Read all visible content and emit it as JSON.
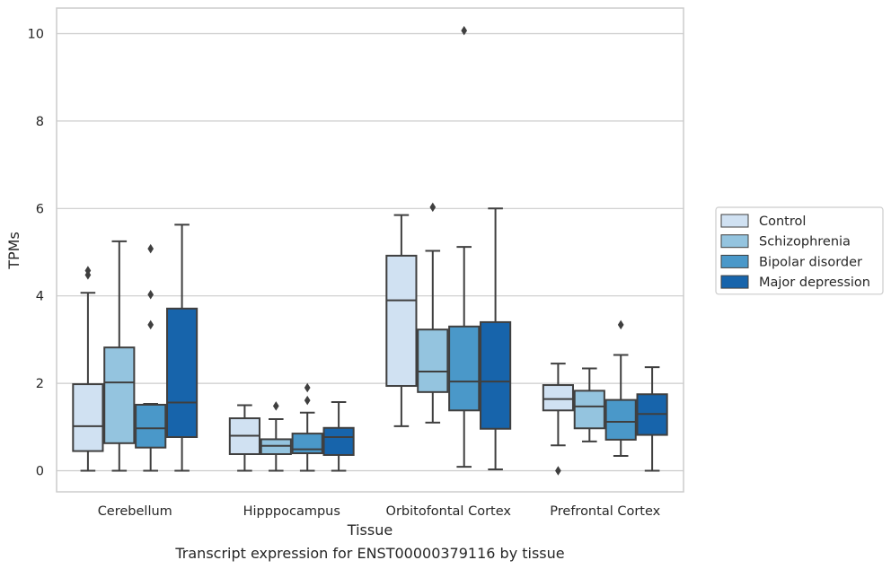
{
  "chart_data": {
    "type": "box",
    "xlabel": "Tissue",
    "ylabel": "TPMs",
    "caption": "Transcript expression for ENST00000379116 by tissue",
    "ylim": [
      -0.5,
      10.6
    ],
    "yticks": [
      0,
      2,
      4,
      6,
      8,
      10
    ],
    "grid": "horizontal",
    "legend_position": "right-outside",
    "categories": [
      "Cerebellum",
      "Hipppocampus",
      "Orbitofontal Cortex",
      "Prefrontal Cortex"
    ],
    "series": [
      {
        "name": "Control",
        "color": "#d0e1f2",
        "boxes": [
          {
            "whisker_low": 0.0,
            "q1": 0.45,
            "median": 1.02,
            "q3": 1.98,
            "whisker_high": 4.07,
            "outliers": [
              4.48,
              4.58
            ]
          },
          {
            "whisker_low": 0.0,
            "q1": 0.38,
            "median": 0.8,
            "q3": 1.2,
            "whisker_high": 1.5,
            "outliers": []
          },
          {
            "whisker_low": 1.02,
            "q1": 1.94,
            "median": 3.9,
            "q3": 4.92,
            "whisker_high": 5.85,
            "outliers": []
          },
          {
            "whisker_low": 0.58,
            "q1": 1.38,
            "median": 1.64,
            "q3": 1.96,
            "whisker_high": 2.45,
            "outliers": [
              0.0
            ]
          }
        ]
      },
      {
        "name": "Schizophrenia",
        "color": "#94c4df",
        "boxes": [
          {
            "whisker_low": 0.0,
            "q1": 0.63,
            "median": 2.02,
            "q3": 2.82,
            "whisker_high": 5.25,
            "outliers": []
          },
          {
            "whisker_low": 0.0,
            "q1": 0.38,
            "median": 0.57,
            "q3": 0.72,
            "whisker_high": 1.18,
            "outliers": [
              1.48
            ]
          },
          {
            "whisker_low": 1.1,
            "q1": 1.8,
            "median": 2.27,
            "q3": 3.23,
            "whisker_high": 5.03,
            "outliers": [
              6.03
            ]
          },
          {
            "whisker_low": 0.67,
            "q1": 0.97,
            "median": 1.47,
            "q3": 1.83,
            "whisker_high": 2.34,
            "outliers": []
          }
        ]
      },
      {
        "name": "Bipolar disorder",
        "color": "#4a98c9",
        "boxes": [
          {
            "whisker_low": 0.0,
            "q1": 0.53,
            "median": 0.97,
            "q3": 1.51,
            "whisker_high": 1.53,
            "outliers": [
              3.34,
              4.03,
              5.08
            ]
          },
          {
            "whisker_low": 0.0,
            "q1": 0.4,
            "median": 0.49,
            "q3": 0.85,
            "whisker_high": 1.33,
            "outliers": [
              1.61,
              1.9
            ]
          },
          {
            "whisker_low": 0.09,
            "q1": 1.38,
            "median": 2.04,
            "q3": 3.3,
            "whisker_high": 5.12,
            "outliers": [
              10.07
            ]
          },
          {
            "whisker_low": 0.34,
            "q1": 0.71,
            "median": 1.12,
            "q3": 1.62,
            "whisker_high": 2.65,
            "outliers": [
              3.34
            ]
          }
        ]
      },
      {
        "name": "Major depression",
        "color": "#1764ab",
        "boxes": [
          {
            "whisker_low": 0.0,
            "q1": 0.77,
            "median": 1.56,
            "q3": 3.71,
            "whisker_high": 5.63,
            "outliers": []
          },
          {
            "whisker_low": 0.0,
            "q1": 0.36,
            "median": 0.77,
            "q3": 0.98,
            "whisker_high": 1.57,
            "outliers": []
          },
          {
            "whisker_low": 0.03,
            "q1": 0.96,
            "median": 2.04,
            "q3": 3.4,
            "whisker_high": 6.0,
            "outliers": []
          },
          {
            "whisker_low": 0.0,
            "q1": 0.82,
            "median": 1.3,
            "q3": 1.75,
            "whisker_high": 2.37,
            "outliers": []
          }
        ]
      }
    ]
  },
  "style": {
    "box_edge_color": "#3f3f3f",
    "grid_color": "#cccccc",
    "frame_color": "#cccccc",
    "legend_edge_color": "#cccccc"
  }
}
